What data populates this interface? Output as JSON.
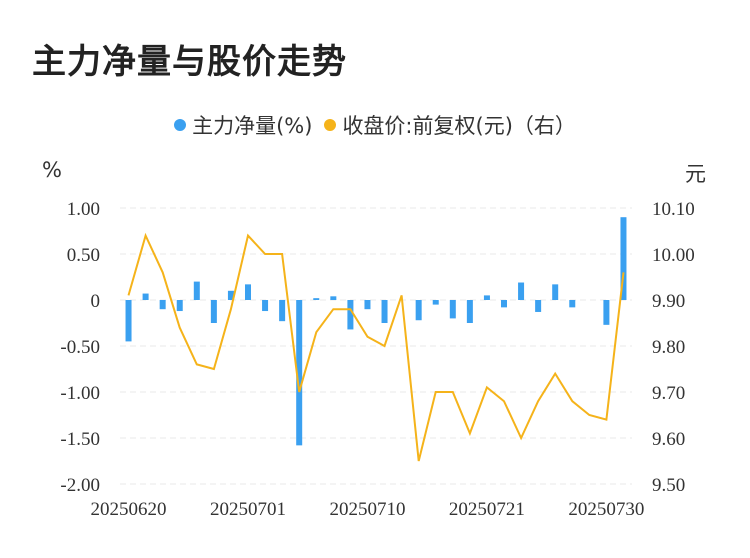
{
  "title": "主力净量与股价走势",
  "legend": {
    "items": [
      {
        "label": "主力净量(%)",
        "color": "#3aa0f0"
      },
      {
        "label": "收盘价:前复权(元)（右）",
        "color": "#f5b31a"
      }
    ]
  },
  "chart_data": {
    "type": "bar+line",
    "left_unit": "%",
    "right_unit": "元",
    "left_axis": {
      "min": -2.0,
      "max": 1.0,
      "ticks": [
        "1.00",
        "0.50",
        "0",
        "-0.50",
        "-1.00",
        "-1.50",
        "-2.00"
      ]
    },
    "right_axis": {
      "min": 9.5,
      "max": 10.1,
      "ticks": [
        "10.10",
        "10.00",
        "9.90",
        "9.80",
        "9.70",
        "9.60",
        "9.50"
      ]
    },
    "x_tick_labels": [
      "20250620",
      "20250701",
      "20250710",
      "20250721",
      "20250730"
    ],
    "x_tick_indices": [
      0,
      7,
      14,
      21,
      28
    ],
    "series": [
      {
        "name": "主力净量(%)",
        "type": "bar",
        "color": "#3aa0f0",
        "values": [
          -0.45,
          0.07,
          -0.1,
          -0.12,
          0.2,
          -0.25,
          0.1,
          0.17,
          -0.12,
          -0.23,
          -1.58,
          0.02,
          0.04,
          -0.32,
          -0.1,
          -0.25,
          0.0,
          -0.22,
          -0.05,
          -0.2,
          -0.25,
          0.05,
          -0.08,
          0.19,
          -0.13,
          0.17,
          -0.08,
          0.0,
          -0.27,
          0.9
        ]
      },
      {
        "name": "收盘价:前复权(元)（右）",
        "type": "line",
        "color": "#f5b31a",
        "values": [
          9.91,
          10.04,
          9.96,
          9.84,
          9.76,
          9.75,
          9.88,
          10.04,
          10.0,
          10.0,
          9.7,
          9.83,
          9.88,
          9.88,
          9.82,
          9.8,
          9.91,
          9.55,
          9.7,
          9.7,
          9.61,
          9.71,
          9.68,
          9.6,
          9.68,
          9.74,
          9.68,
          9.65,
          9.64,
          9.96
        ]
      }
    ],
    "grid": true
  }
}
